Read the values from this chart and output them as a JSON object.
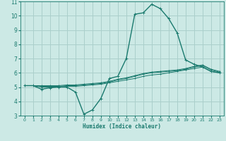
{
  "xlabel": "Humidex (Indice chaleur)",
  "bg_color": "#cce9e5",
  "grid_color": "#aacfcb",
  "line_color": "#1a7a6e",
  "xlim": [
    -0.5,
    23.5
  ],
  "ylim": [
    3,
    11
  ],
  "xticks": [
    0,
    1,
    2,
    3,
    4,
    5,
    6,
    7,
    8,
    9,
    10,
    11,
    12,
    13,
    14,
    15,
    16,
    17,
    18,
    19,
    20,
    21,
    22,
    23
  ],
  "yticks": [
    3,
    4,
    5,
    6,
    7,
    8,
    9,
    10,
    11
  ],
  "series": [
    {
      "x": [
        0,
        1,
        2,
        3,
        4,
        5,
        6,
        7,
        8,
        9,
        10,
        11,
        12,
        13,
        14,
        15,
        16,
        17,
        18,
        19,
        20,
        21,
        22,
        23
      ],
      "y": [
        5.1,
        5.1,
        4.85,
        4.95,
        5.0,
        5.0,
        4.65,
        3.1,
        3.4,
        4.2,
        5.6,
        5.75,
        7.0,
        10.1,
        10.2,
        10.8,
        10.5,
        9.8,
        8.8,
        6.9,
        6.6,
        6.4,
        6.1,
        6.0
      ]
    },
    {
      "x": [
        0,
        1,
        2,
        3,
        4,
        5,
        6,
        7,
        8,
        9,
        10,
        11,
        12,
        13,
        14,
        15,
        16,
        17,
        18,
        19,
        20,
        21,
        22,
        23
      ],
      "y": [
        5.1,
        5.1,
        5.0,
        5.0,
        5.0,
        5.05,
        5.05,
        5.1,
        5.15,
        5.2,
        5.3,
        5.4,
        5.5,
        5.6,
        5.75,
        5.85,
        5.9,
        6.0,
        6.1,
        6.2,
        6.3,
        6.4,
        6.1,
        6.0
      ]
    },
    {
      "x": [
        0,
        1,
        2,
        3,
        4,
        5,
        6,
        7,
        8,
        9,
        10,
        11,
        12,
        13,
        14,
        15,
        16,
        17,
        18,
        19,
        20,
        21,
        22,
        23
      ],
      "y": [
        5.1,
        5.1,
        5.05,
        5.05,
        5.05,
        5.1,
        5.1,
        5.15,
        5.2,
        5.25,
        5.35,
        5.5,
        5.6,
        5.75,
        5.9,
        6.0,
        6.05,
        6.1,
        6.15,
        6.25,
        6.4,
        6.5,
        6.2,
        6.05
      ]
    },
    {
      "x": [
        0,
        1,
        2,
        3,
        4,
        5,
        6,
        7,
        8,
        9,
        10,
        11,
        12,
        13,
        14,
        15,
        16,
        17,
        18,
        19,
        20,
        21,
        22,
        23
      ],
      "y": [
        5.1,
        5.1,
        5.1,
        5.1,
        5.1,
        5.15,
        5.15,
        5.2,
        5.25,
        5.3,
        5.4,
        5.55,
        5.65,
        5.8,
        5.95,
        6.05,
        6.1,
        6.15,
        6.2,
        6.3,
        6.45,
        6.55,
        6.25,
        6.1
      ]
    }
  ]
}
